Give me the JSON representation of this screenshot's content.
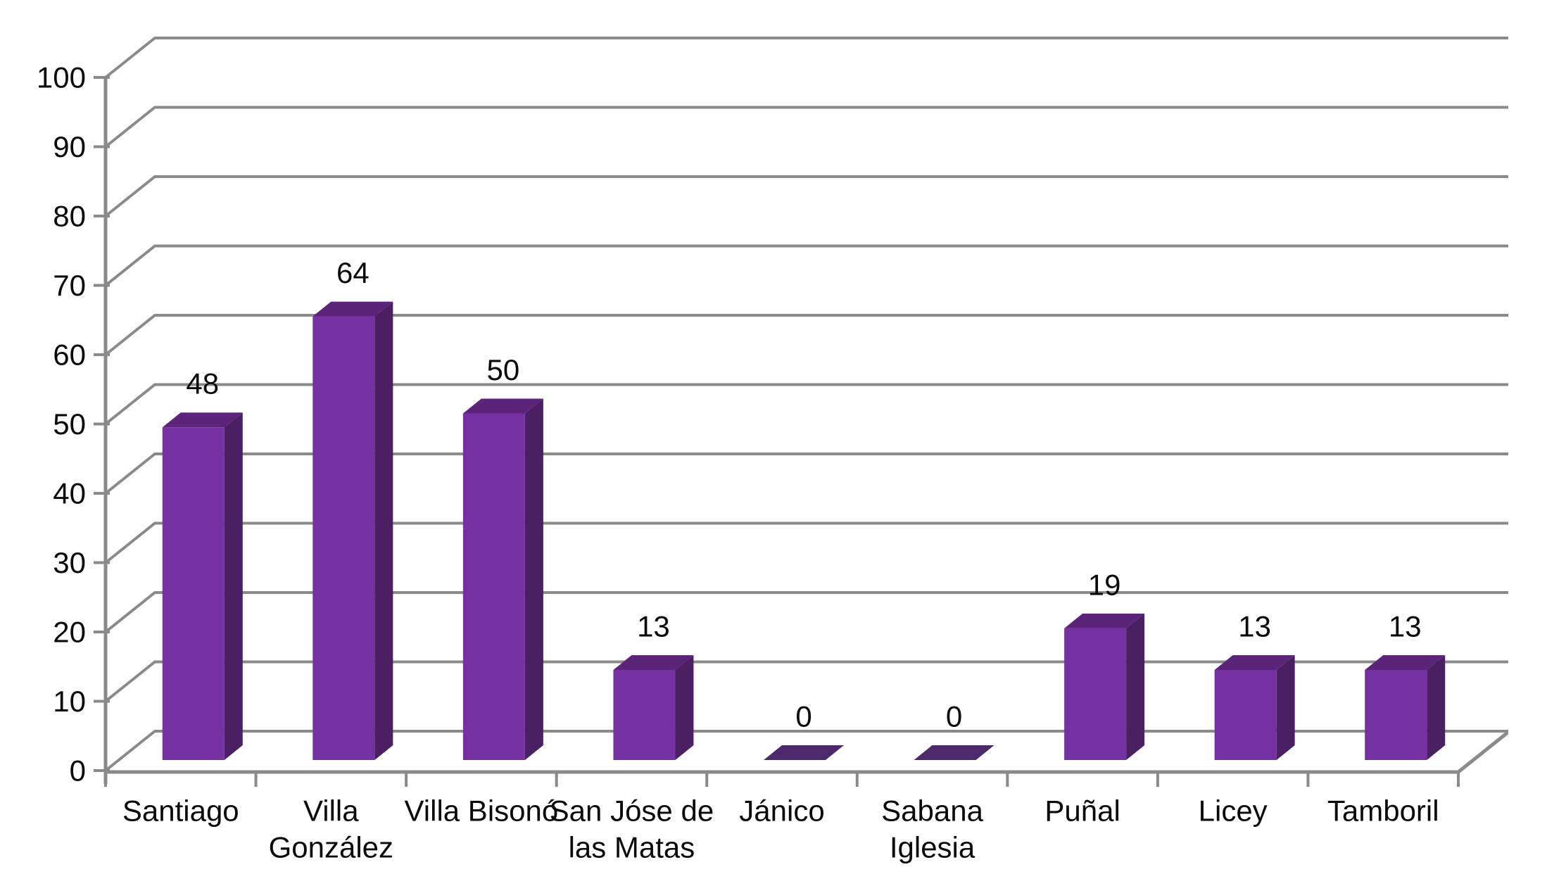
{
  "chart_data": {
    "type": "bar",
    "variant": "3d-column",
    "title": "",
    "legend": "none",
    "grid": true,
    "categories": [
      "Santiago",
      "Villa González",
      "Villa Bisonó",
      "San Jóse de las Matas",
      "Jánico",
      "Sabana Iglesia",
      "Puñal",
      "Licey",
      "Tamboril"
    ],
    "category_label_lines": [
      [
        "Santiago"
      ],
      [
        "Villa",
        "González"
      ],
      [
        "Villa Bisonó"
      ],
      [
        "San Jóse de",
        "las Matas"
      ],
      [
        "Jánico"
      ],
      [
        "Sabana",
        "Iglesia"
      ],
      [
        "Puñal"
      ],
      [
        "Licey"
      ],
      [
        "Tamboril"
      ]
    ],
    "values": [
      48,
      64,
      50,
      13,
      0,
      0,
      19,
      13,
      13
    ],
    "data_labels": [
      "48",
      "64",
      "50",
      "13",
      "0",
      "0",
      "19",
      "13",
      "13"
    ],
    "y_axis": {
      "min": 0,
      "max": 100,
      "step": 10,
      "tick_labels": [
        "0",
        "10",
        "20",
        "30",
        "40",
        "50",
        "60",
        "70",
        "80",
        "90",
        "100"
      ]
    },
    "xlabel": "",
    "ylabel": "",
    "colors": {
      "bar_front": "#7531A1",
      "bar_top": "#5B2478",
      "bar_side": "#4A2063",
      "bar_zero": "#4C296B",
      "gridline": "#8A8A8A",
      "axis": "#8A8A8A",
      "text": "#0A0A0A",
      "background": "#FFFFFF"
    }
  }
}
